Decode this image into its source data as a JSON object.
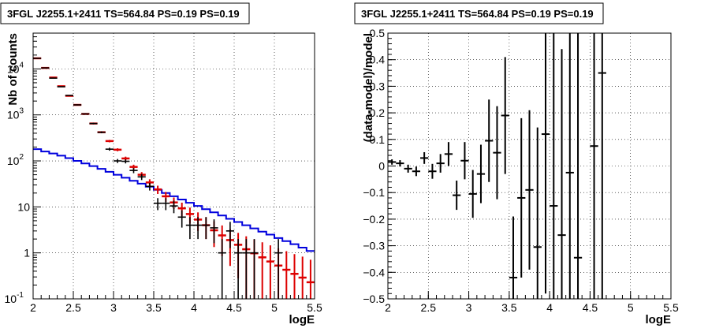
{
  "chart_data": [
    {
      "type": "histogram",
      "title": "3FGL J2255.1+2411 TS=564.84 PS=0.19 PS=0.19",
      "xlabel": "logE",
      "ylabel": "Nb of counts",
      "xlim": [
        2,
        5.5
      ],
      "ylim": [
        0.1,
        60000
      ],
      "yscale": "log",
      "grid": true,
      "x_ticks": [
        "2",
        "2.5",
        "3",
        "3.5",
        "4",
        "4.5",
        "5",
        "5.5"
      ],
      "y_ticks": [
        {
          "value": 0.1,
          "label": "10",
          "exp": "-1"
        },
        {
          "value": 1,
          "label": "1",
          "exp": ""
        },
        {
          "value": 10,
          "label": "10",
          "exp": ""
        },
        {
          "value": 100,
          "label": "10",
          "exp": "2"
        },
        {
          "value": 1000,
          "label": "10",
          "exp": "3"
        },
        {
          "value": 10000,
          "label": "10",
          "exp": "4"
        }
      ],
      "bins": [
        2.0,
        2.1,
        2.2,
        2.3,
        2.4,
        2.5,
        2.6,
        2.7,
        2.8,
        2.9,
        3.0,
        3.1,
        3.2,
        3.3,
        3.4,
        3.5,
        3.6,
        3.7,
        3.8,
        3.9,
        4.0,
        4.1,
        4.2,
        4.3,
        4.4,
        4.5,
        4.6,
        4.7,
        4.8,
        4.9,
        5.0,
        5.1,
        5.2,
        5.3,
        5.4,
        5.5
      ],
      "series": [
        {
          "role": "model_total",
          "color": "#dd0000",
          "style": "bars-with-errors",
          "x": [
            2.05,
            2.15,
            2.25,
            2.35,
            2.45,
            2.55,
            2.65,
            2.75,
            2.85,
            2.95,
            3.05,
            3.15,
            3.25,
            3.35,
            3.45,
            3.55,
            3.65,
            3.75,
            3.85,
            3.95,
            4.05,
            4.15,
            4.25,
            4.35,
            4.45,
            4.55,
            4.65,
            4.75,
            4.85,
            4.95,
            5.05,
            5.15,
            5.25,
            5.35,
            5.45
          ],
          "values": [
            17000,
            10500,
            6500,
            4200,
            2600,
            1650,
            1050,
            650,
            420,
            270,
            175,
            113,
            74,
            50,
            34,
            24,
            17,
            12.5,
            9.3,
            7.0,
            5.3,
            4.0,
            3.1,
            2.4,
            1.9,
            1.5,
            1.2,
            0.98,
            0.8,
            0.65,
            0.53,
            0.43,
            0.35,
            0.29,
            0.23
          ],
          "errors": [
            130,
            102,
            80,
            64,
            51,
            40,
            32,
            25,
            20,
            16,
            13,
            10.6,
            8.6,
            7.0,
            5.8,
            4.9,
            4.1,
            3.5,
            3.05,
            2.65,
            2.3,
            2.0,
            1.76,
            1.55,
            1.38,
            1.22,
            1.1,
            0.99,
            0.9,
            0.81,
            0.73,
            0.66,
            0.59,
            0.54,
            0.48
          ]
        },
        {
          "role": "model_background",
          "color": "#0000dd",
          "style": "step",
          "values": [
            180,
            160,
            145,
            130,
            115,
            100,
            88,
            77,
            67,
            58,
            50,
            43,
            37,
            32,
            27.5,
            23.5,
            20,
            17,
            14.5,
            12.3,
            10.5,
            8.9,
            7.6,
            6.5,
            5.5,
            4.7,
            4.0,
            3.4,
            2.9,
            2.5,
            2.1,
            1.8,
            1.55,
            1.3,
            1.1
          ]
        },
        {
          "role": "data",
          "color": "#000000",
          "style": "points-with-errors",
          "x": [
            2.05,
            2.15,
            2.25,
            2.35,
            2.45,
            2.55,
            2.65,
            2.75,
            2.85,
            2.95,
            3.05,
            3.15,
            3.25,
            3.35,
            3.45,
            3.55,
            3.65,
            3.75,
            3.85,
            3.95,
            4.05,
            4.15,
            4.25,
            4.35,
            4.45,
            4.55,
            4.65,
            4.75,
            5.05
          ],
          "values": [
            17000,
            10500,
            6300,
            4100,
            2650,
            1650,
            1050,
            650,
            420,
            180,
            100,
            98,
            62,
            45,
            28,
            12,
            12,
            10.5,
            6.0,
            4.0,
            4.0,
            4.0,
            3.5,
            1.0,
            3.0,
            1.0,
            1.0,
            1.0,
            1.0
          ],
          "errors": [
            130,
            102,
            79,
            64,
            51,
            40,
            32,
            25,
            20,
            13.4,
            10,
            9.9,
            7.9,
            6.7,
            5.3,
            3.5,
            3.5,
            3.2,
            2.45,
            2.0,
            2.0,
            2.0,
            1.87,
            1.0,
            1.73,
            1.0,
            1.0,
            1.0,
            1.0
          ]
        }
      ]
    },
    {
      "type": "scatter",
      "title": "3FGL J2255.1+2411 TS=564.84 PS=0.19 PS=0.19",
      "xlabel": "logE",
      "ylabel": "(data-model)/model",
      "xlim": [
        2,
        5.5
      ],
      "ylim": [
        -0.5,
        0.5
      ],
      "grid": true,
      "x_ticks": [
        "2",
        "2.5",
        "3",
        "3.5",
        "4",
        "4.5",
        "5",
        "5.5"
      ],
      "y_ticks": [
        "0.5",
        "0.4",
        "0.3",
        "0.2",
        "0.1",
        "0",
        "−0.1",
        "−0.2",
        "−0.3",
        "−0.4",
        "−0.5"
      ],
      "series": [
        {
          "role": "residuals",
          "color": "#000000",
          "x": [
            2.05,
            2.15,
            2.25,
            2.35,
            2.45,
            2.55,
            2.65,
            2.75,
            2.85,
            2.95,
            3.05,
            3.15,
            3.25,
            3.35,
            3.45,
            3.55,
            3.65,
            3.75,
            3.85,
            3.95,
            4.05,
            4.15,
            4.25,
            4.35,
            4.55,
            4.65
          ],
          "y": [
            0.015,
            0.01,
            -0.01,
            -0.02,
            0.03,
            -0.02,
            0.01,
            0.045,
            -0.11,
            0.02,
            -0.105,
            -0.03,
            0.095,
            0.05,
            0.19,
            -0.42,
            -0.12,
            -0.09,
            -0.305,
            0.12,
            -0.15,
            -0.26,
            -0.025,
            -0.345,
            0.075,
            0.35
          ],
          "errors": [
            0.01,
            0.012,
            0.015,
            0.018,
            0.022,
            0.028,
            0.035,
            0.045,
            0.055,
            0.07,
            0.09,
            0.11,
            0.155,
            0.175,
            0.22,
            0.23,
            0.3,
            0.3,
            0.45,
            0.6,
            0.65,
            0.7,
            0.85,
            1.0,
            1.5,
            1.7
          ]
        }
      ]
    }
  ]
}
